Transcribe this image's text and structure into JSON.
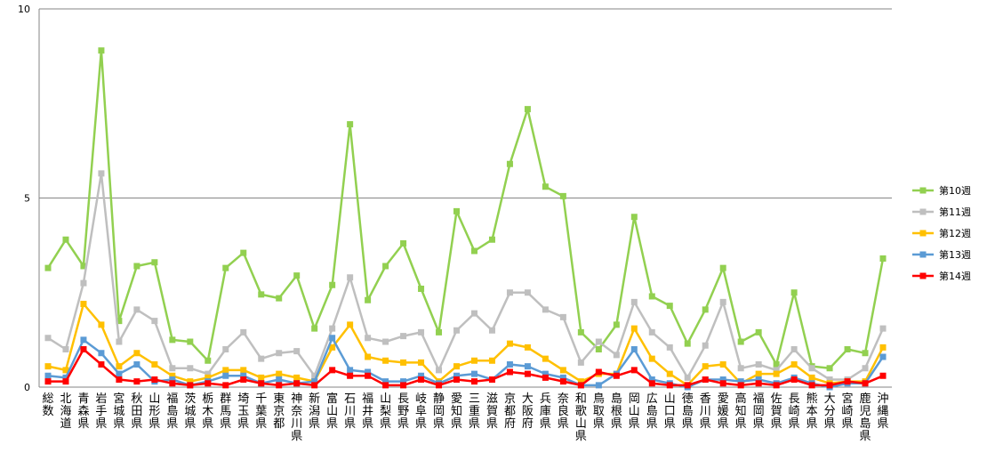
{
  "chart_data": {
    "type": "line",
    "ylim": [
      0,
      10
    ],
    "yticks": [
      0,
      5,
      10
    ],
    "grid": true,
    "legend_position": "right",
    "categories": [
      "総数",
      "北海道",
      "青森県",
      "岩手県",
      "宮城県",
      "秋田県",
      "山形県",
      "福島県",
      "茨城県",
      "栃木県",
      "群馬県",
      "埼玉県",
      "千葉県",
      "東京都",
      "神奈川県",
      "新潟県",
      "富山県",
      "石川県",
      "福井県",
      "山梨県",
      "長野県",
      "岐阜県",
      "静岡県",
      "愛知県",
      "三重県",
      "滋賀県",
      "京都府",
      "大阪府",
      "兵庫県",
      "奈良県",
      "和歌山県",
      "鳥取県",
      "島根県",
      "岡山県",
      "広島県",
      "山口県",
      "徳島県",
      "香川県",
      "愛媛県",
      "高知県",
      "福岡県",
      "佐賀県",
      "長崎県",
      "熊本県",
      "大分県",
      "宮崎県",
      "鹿児島県",
      "沖縄県"
    ],
    "series": [
      {
        "name": "第10週",
        "color": "#92d050",
        "values": [
          3.15,
          3.9,
          3.2,
          8.9,
          1.75,
          3.2,
          3.3,
          1.25,
          1.2,
          0.7,
          3.15,
          3.55,
          2.45,
          2.35,
          2.95,
          1.55,
          2.7,
          6.95,
          2.3,
          3.2,
          3.8,
          2.6,
          1.45,
          4.65,
          3.6,
          3.9,
          5.9,
          7.35,
          5.3,
          5.05,
          1.45,
          1.0,
          1.65,
          4.5,
          2.4,
          2.15,
          1.15,
          2.05,
          3.15,
          1.2,
          1.45,
          0.6,
          2.5,
          0.55,
          0.5,
          1.0,
          0.9,
          3.4
        ]
      },
      {
        "name": "第11週",
        "color": "#bfbfbf",
        "values": [
          1.3,
          1.0,
          2.75,
          5.65,
          1.2,
          2.05,
          1.75,
          0.5,
          0.5,
          0.35,
          1.0,
          1.45,
          0.75,
          0.9,
          0.95,
          0.3,
          1.55,
          2.9,
          1.3,
          1.2,
          1.35,
          1.45,
          0.45,
          1.5,
          1.95,
          1.5,
          2.5,
          2.5,
          2.05,
          1.85,
          0.65,
          1.2,
          0.85,
          2.25,
          1.45,
          1.05,
          0.25,
          1.1,
          2.25,
          0.5,
          0.6,
          0.45,
          1.0,
          0.5,
          0.2,
          0.2,
          0.5,
          1.55
        ]
      },
      {
        "name": "第12週",
        "color": "#ffc000",
        "values": [
          0.55,
          0.45,
          2.2,
          1.65,
          0.55,
          0.9,
          0.6,
          0.3,
          0.15,
          0.25,
          0.45,
          0.45,
          0.25,
          0.35,
          0.25,
          0.15,
          1.05,
          1.65,
          0.8,
          0.7,
          0.65,
          0.65,
          0.15,
          0.55,
          0.7,
          0.7,
          1.15,
          1.05,
          0.75,
          0.45,
          0.15,
          0.35,
          0.35,
          1.55,
          0.75,
          0.35,
          0.05,
          0.55,
          0.6,
          0.1,
          0.35,
          0.35,
          0.6,
          0.25,
          0.1,
          0.15,
          0.15,
          1.05
        ]
      },
      {
        "name": "第13週",
        "color": "#5b9bd5",
        "values": [
          0.3,
          0.25,
          1.25,
          0.9,
          0.35,
          0.6,
          0.15,
          0.2,
          0.05,
          0.15,
          0.3,
          0.3,
          0.1,
          0.2,
          0.1,
          0.15,
          1.3,
          0.45,
          0.4,
          0.15,
          0.15,
          0.3,
          0.1,
          0.3,
          0.35,
          0.2,
          0.6,
          0.55,
          0.35,
          0.25,
          0.05,
          0.05,
          0.35,
          1.0,
          0.2,
          0.1,
          0.0,
          0.2,
          0.2,
          0.15,
          0.2,
          0.1,
          0.25,
          0.1,
          0.0,
          0.1,
          0.1,
          0.8
        ]
      },
      {
        "name": "第14週",
        "color": "#ff0000",
        "values": [
          0.15,
          0.15,
          1.0,
          0.6,
          0.2,
          0.15,
          0.2,
          0.1,
          0.05,
          0.1,
          0.05,
          0.2,
          0.1,
          0.05,
          0.1,
          0.05,
          0.45,
          0.3,
          0.3,
          0.05,
          0.05,
          0.2,
          0.05,
          0.2,
          0.15,
          0.2,
          0.4,
          0.35,
          0.25,
          0.15,
          0.05,
          0.4,
          0.3,
          0.45,
          0.1,
          0.05,
          0.05,
          0.2,
          0.1,
          0.05,
          0.1,
          0.05,
          0.2,
          0.05,
          0.05,
          0.15,
          0.1,
          0.3
        ]
      }
    ]
  }
}
